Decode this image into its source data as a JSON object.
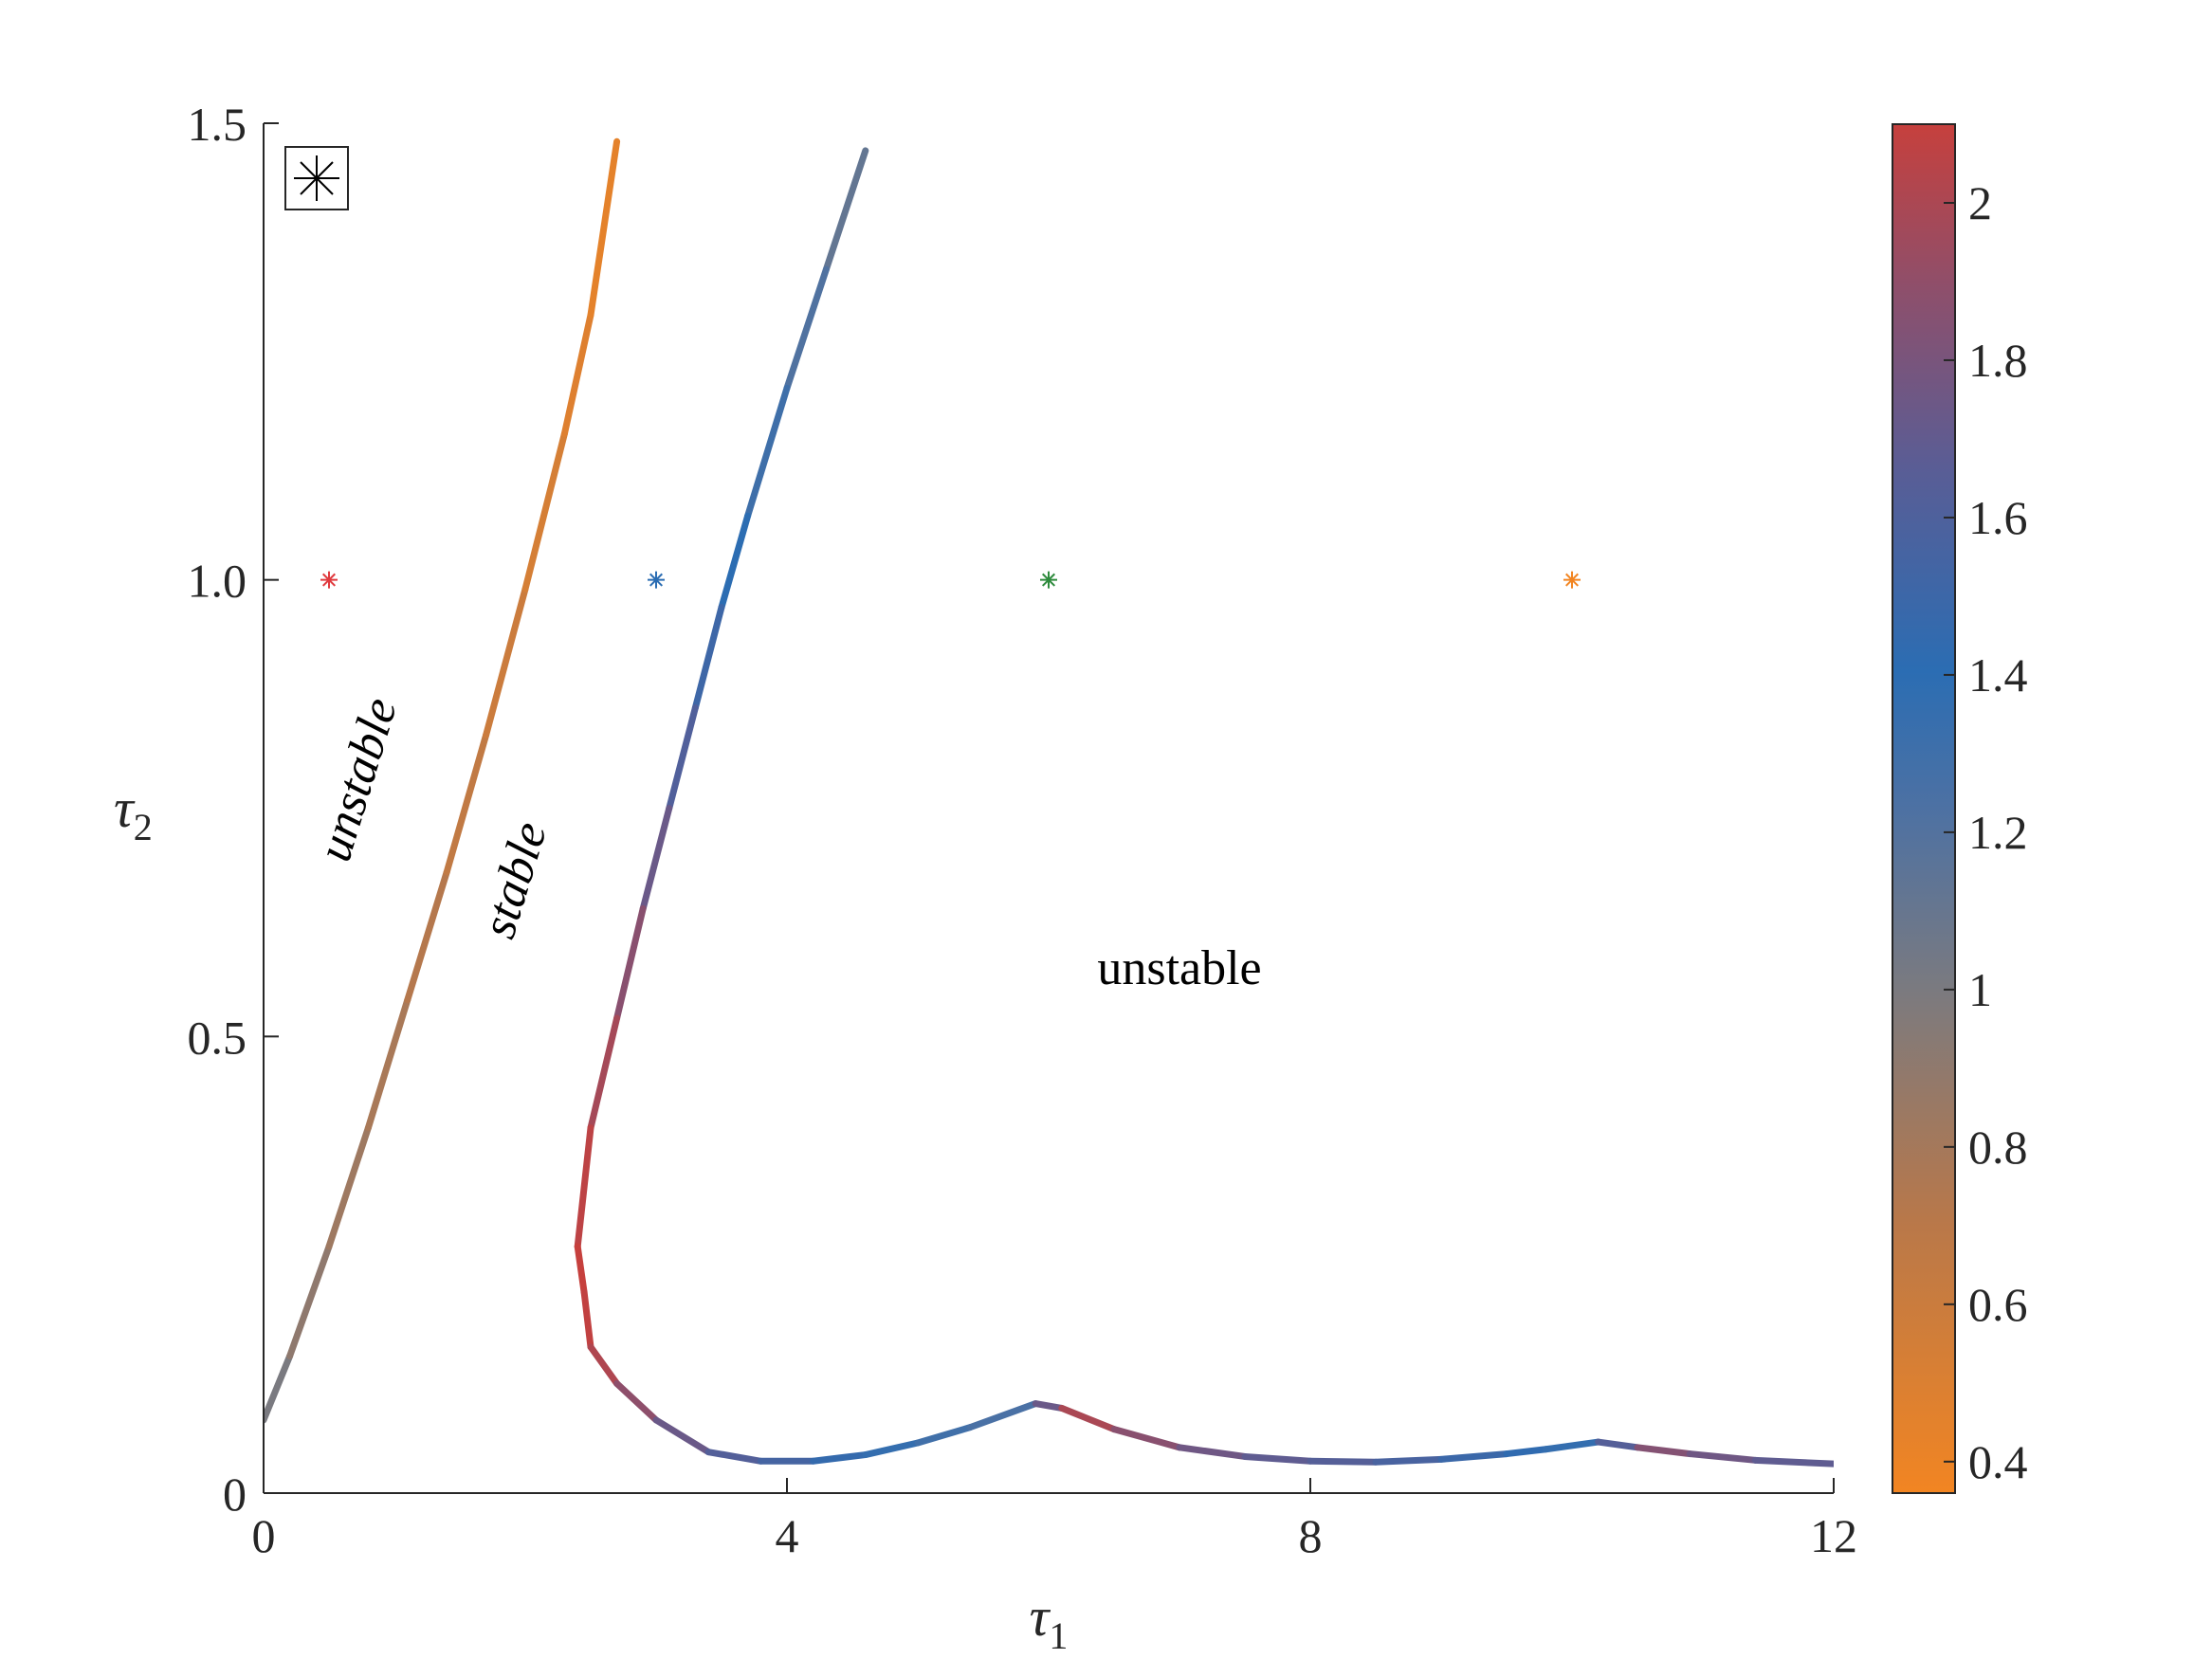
{
  "chart_data": {
    "type": "line",
    "xlabel": "τ",
    "xlabel_sub": "1",
    "ylabel": "τ",
    "ylabel_sub": "2",
    "xlim": [
      0,
      12
    ],
    "ylim": [
      0,
      1.5
    ],
    "x_ticks": [
      0,
      4,
      8,
      12
    ],
    "x_tick_labels": [
      "0",
      "4",
      "8",
      "12"
    ],
    "y_ticks": [
      0,
      0.5,
      1.0,
      1.5
    ],
    "y_tick_labels": [
      "0",
      "0.5",
      "1.0",
      "1.5"
    ],
    "grid": false,
    "colorbar": {
      "range": [
        0.36,
        2.1
      ],
      "ticks": [
        0.4,
        0.6,
        0.8,
        1,
        1.2,
        1.4,
        1.6,
        1.8,
        2
      ],
      "tick_labels": [
        "0.4",
        "0.6",
        "0.8",
        "1",
        "1.2",
        "1.4",
        "1.6",
        "1.8",
        "2"
      ],
      "colors": [
        "#f28522",
        "#2b6db3",
        "#c6403d"
      ]
    },
    "series": [
      {
        "points": [
          [
            0.0,
            0.08,
            1.05
          ],
          [
            0.2,
            0.15,
            0.95
          ],
          [
            0.5,
            0.27,
            0.85
          ],
          [
            0.8,
            0.4,
            0.8
          ],
          [
            1.1,
            0.54,
            0.75
          ],
          [
            1.4,
            0.68,
            0.68
          ],
          [
            1.7,
            0.83,
            0.62
          ],
          [
            2.0,
            0.99,
            0.56
          ],
          [
            2.3,
            1.16,
            0.5
          ],
          [
            2.5,
            1.29,
            0.46
          ],
          [
            2.7,
            1.48,
            0.42
          ]
        ]
      },
      {
        "points": [
          [
            4.6,
            1.47,
            1.05
          ],
          [
            4.3,
            1.34,
            1.15
          ],
          [
            4.0,
            1.21,
            1.22
          ],
          [
            3.7,
            1.07,
            1.26
          ],
          [
            3.5,
            0.97,
            1.35
          ],
          [
            3.3,
            0.86,
            1.45
          ],
          [
            3.1,
            0.75,
            1.55
          ],
          [
            2.9,
            0.64,
            1.7
          ],
          [
            2.7,
            0.52,
            1.85
          ],
          [
            2.5,
            0.4,
            2.0
          ],
          [
            2.4,
            0.27,
            2.1
          ],
          [
            2.45,
            0.22,
            2.1
          ],
          [
            2.5,
            0.16,
            2.05
          ],
          [
            2.7,
            0.12,
            1.9
          ],
          [
            3.0,
            0.08,
            1.7
          ],
          [
            3.4,
            0.045,
            1.55
          ],
          [
            3.8,
            0.035,
            1.48
          ],
          [
            4.2,
            0.035,
            1.4
          ],
          [
            4.6,
            0.042,
            1.3
          ],
          [
            5.0,
            0.055,
            1.25
          ],
          [
            5.4,
            0.072,
            1.22
          ],
          [
            5.9,
            0.098,
            1.2
          ],
          [
            6.1,
            0.093,
            2.05
          ],
          [
            6.5,
            0.07,
            1.85
          ],
          [
            7.0,
            0.05,
            1.7
          ],
          [
            7.5,
            0.04,
            1.6
          ],
          [
            8.0,
            0.035,
            1.55
          ],
          [
            8.5,
            0.034,
            1.5
          ],
          [
            9.0,
            0.037,
            1.42
          ],
          [
            9.5,
            0.043,
            1.35
          ],
          [
            9.8,
            0.048,
            1.3
          ],
          [
            10.2,
            0.056,
            1.25
          ],
          [
            10.5,
            0.05,
            1.8
          ],
          [
            10.9,
            0.043,
            1.7
          ],
          [
            11.4,
            0.036,
            1.6
          ],
          [
            12.0,
            0.032,
            1.55
          ]
        ]
      }
    ],
    "markers": [
      {
        "x": 0.5,
        "y": 1.0,
        "color": "#e03a3e"
      },
      {
        "x": 3.0,
        "y": 1.0,
        "color": "#2b6db3"
      },
      {
        "x": 6.0,
        "y": 1.0,
        "color": "#2e8b3d"
      },
      {
        "x": 10.0,
        "y": 1.0,
        "color": "#f28522"
      }
    ],
    "annotations": [
      {
        "text": "unstable",
        "x": 0.75,
        "y": 0.78,
        "rotation": -73,
        "italic": true
      },
      {
        "text": "stable",
        "x": 1.95,
        "y": 0.67,
        "rotation": -73,
        "italic": true
      },
      {
        "text": "unstable",
        "x": 7.0,
        "y": 0.57,
        "rotation": 0,
        "italic": false
      }
    ]
  }
}
